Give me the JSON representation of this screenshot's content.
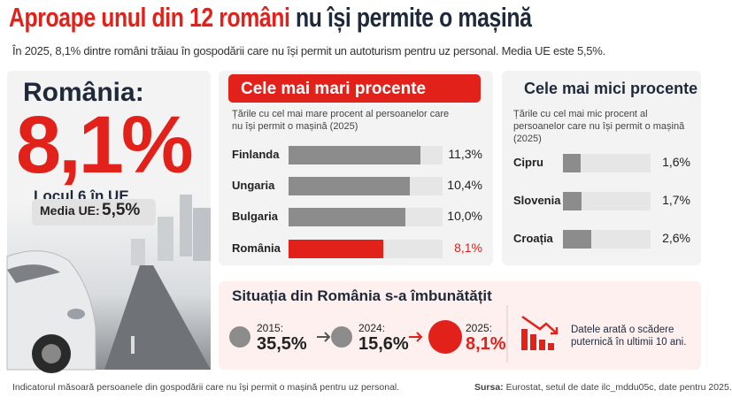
{
  "header": {
    "title_highlight": "Aproape unul din 12 români",
    "title_rest": "nu își permite o mașină",
    "subtitle": "În 2025, 8,1% dintre români trăiau în gospodării care nu își permit un autoturism pentru uz personal. Media UE este 5,5%."
  },
  "left": {
    "country": "România:",
    "value": "8,1%",
    "rank": "Locul 6 în UE",
    "eu_label": "Media UE:",
    "eu_value": "5,5%"
  },
  "chart_data": [
    {
      "type": "bar",
      "orientation": "horizontal",
      "title": "Cele mai mari procente",
      "subtitle": "Țările cu cel mai mare procent al persoanelor care nu își permit o mașină (2025)",
      "categories": [
        "Finlanda",
        "Ungaria",
        "Bulgaria",
        "România"
      ],
      "values": [
        11.3,
        10.4,
        10.0,
        8.1
      ],
      "value_labels": [
        "11,3%",
        "10,4%",
        "10,0%",
        "8,1%"
      ],
      "colors": [
        "#8c8c8c",
        "#8c8c8c",
        "#8c8c8c",
        "#e3211b"
      ],
      "xlim": [
        0,
        13.2
      ]
    },
    {
      "type": "bar",
      "orientation": "horizontal",
      "title": "Cele mai mici procente",
      "subtitle": "Țările cu cel mai mic procent al persoanelor care nu își permit o mașină (2025)",
      "categories": [
        "Cipru",
        "Slovenia",
        "Croația"
      ],
      "values": [
        1.6,
        1.7,
        2.6
      ],
      "value_labels": [
        "1,6%",
        "1,7%",
        "2,6%"
      ],
      "colors": [
        "#8c8c8c",
        "#8c8c8c",
        "#8c8c8c"
      ],
      "xlim": [
        0,
        8
      ]
    }
  ],
  "timeline": {
    "title": "Situația din România s-a îmbunătățit",
    "items": [
      {
        "year": "2015:",
        "value": "35,5%"
      },
      {
        "year": "2024:",
        "value": "15,6%"
      },
      {
        "year": "2025:",
        "value": "8,1%"
      }
    ],
    "note": "Datele arată o scădere puternică în ultimii 10 ani."
  },
  "footer": {
    "note": "Indicatorul măsoară persoanele din gospodării care nu își permit o mașină pentru uz personal.",
    "source_label": "Sursa:",
    "source": "Eurostat, setul de date ilc_mddu05c, date pentru 2025."
  }
}
